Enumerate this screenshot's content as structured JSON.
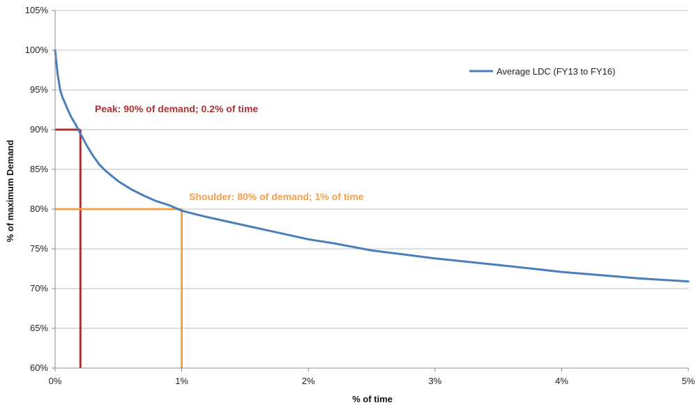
{
  "chart_data": {
    "type": "line",
    "title": "",
    "xlabel": "% of time",
    "ylabel": "% of maximum Demand",
    "xlim": [
      0,
      5
    ],
    "ylim": [
      60,
      105
    ],
    "x_ticks": [
      0,
      1,
      2,
      3,
      4,
      5
    ],
    "x_tick_labels": [
      "0%",
      "1%",
      "2%",
      "3%",
      "4%",
      "5%"
    ],
    "y_ticks": [
      60,
      65,
      70,
      75,
      80,
      85,
      90,
      95,
      100,
      105
    ],
    "y_tick_labels": [
      "60%",
      "65%",
      "70%",
      "75%",
      "80%",
      "85%",
      "90%",
      "95%",
      "100%",
      "105%"
    ],
    "grid": true,
    "legend_position": "top-right",
    "series": [
      {
        "name": "Average LDC (FY13 to FY16)",
        "color": "#4a7ebb",
        "x": [
          0,
          0.01,
          0.02,
          0.04,
          0.06,
          0.08,
          0.1,
          0.13,
          0.16,
          0.2,
          0.25,
          0.3,
          0.35,
          0.4,
          0.5,
          0.6,
          0.7,
          0.8,
          0.9,
          1.0,
          1.2,
          1.4,
          1.6,
          1.8,
          2.0,
          2.2,
          2.5,
          2.8,
          3.0,
          3.3,
          3.6,
          4.0,
          4.3,
          4.6,
          5.0
        ],
        "y": [
          100,
          98.5,
          97,
          95,
          94,
          93.3,
          92.5,
          91.5,
          90.7,
          89.5,
          88,
          86.7,
          85.6,
          84.8,
          83.5,
          82.5,
          81.7,
          81,
          80.5,
          79.8,
          79,
          78.3,
          77.6,
          76.9,
          76.2,
          75.7,
          74.8,
          74.2,
          73.8,
          73.3,
          72.8,
          72.1,
          71.7,
          71.3,
          70.9
        ]
      }
    ],
    "annotations": [
      {
        "text": "Peak: 90% of demand; 0.2% of time",
        "x": 0.2,
        "y": 90,
        "color": "#a83232"
      },
      {
        "text": "Shoulder: 80% of demand; 1% of time",
        "x": 1,
        "y": 80,
        "color": "#f0a050"
      }
    ]
  }
}
